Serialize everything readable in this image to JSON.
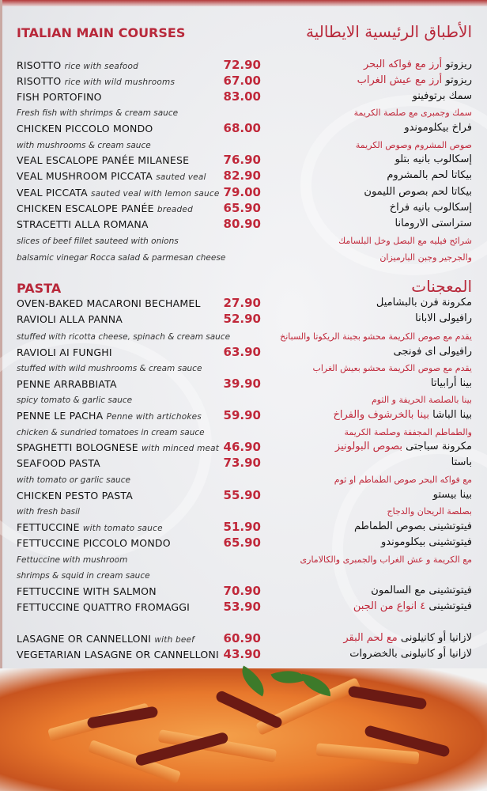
{
  "main_courses": {
    "title": "ITALIAN MAIN COURSES",
    "title_ar": "الأطباق الرئيسية الايطالية",
    "rows": [
      {
        "name": "RISOTTO",
        "note": "rice with seafood",
        "price": "72.90",
        "ar": "ريزوتو",
        "ar_note": "أرز مع فواكه البحر"
      },
      {
        "name": "RISOTTO",
        "note": "rice with wild mushrooms",
        "price": "67.00",
        "ar": "ريزوتو",
        "ar_note": "أرز مع عيش الغراب"
      },
      {
        "name": "FISH PORTOFINO",
        "price": "83.00",
        "ar": "سمك برتوفينو"
      },
      {
        "desc": "Fresh fish with shrimps & cream sauce",
        "ar_desc": "سمك وجمبرى مع صلصة الكريمة"
      },
      {
        "name": "CHICKEN PICCOLO MONDO",
        "price": "68.00",
        "ar": "فراخ بيكلوموندو"
      },
      {
        "desc": "with mushrooms & cream sauce",
        "ar_desc": "صوص المشروم وصوص الكريمة"
      },
      {
        "name": "VEAL ESCALOPE PANÉE MILANESE",
        "price": "76.90",
        "ar": "إسكالوب بانيه بتلو"
      },
      {
        "name": "VEAL MUSHROOM PICCATA",
        "note": "sauted veal",
        "price": "82.90",
        "ar": "بيكاتا لحم بالمشروم"
      },
      {
        "name": "VEAL PICCATA",
        "note": "sauted veal with lemon sauce",
        "price": "79.00",
        "ar": "بيكاتا لحم بصوص الليمون"
      },
      {
        "name": "CHICKEN ESCALOPE PANÉE",
        "note": "breaded",
        "price": "65.90",
        "ar": "إسكالوب بانيه فراخ"
      },
      {
        "name": "STRACETTI ALLA ROMANA",
        "price": "80.90",
        "ar": "ستراستى الارومانا"
      },
      {
        "desc": "slices of beef fillet sauteed with onions",
        "ar_desc": "شرائح فيليه مع البصل وخل البلسامك"
      },
      {
        "desc": "balsamic vinegar Rocca salad & parmesan cheese",
        "ar_desc": "والجرجير وجبن البارميزان"
      }
    ]
  },
  "pasta": {
    "title": "PASTA",
    "title_ar": "المعجنات",
    "rows": [
      {
        "name": "OVEN-BAKED MACARONI BECHAMEL",
        "price": "27.90",
        "ar": "مكرونة فرن بالبشاميل"
      },
      {
        "name": "RAVIOLI ALLA PANNA",
        "price": "52.90",
        "ar": "رافيولى الابانا"
      },
      {
        "desc": "stuffed with ricotta cheese, spinach & cream sauce",
        "ar_desc": "يقدم مع صوص الكريمة محشو بجبنة الريكوتا والسبانخ"
      },
      {
        "name": "RAVIOLI AI FUNGHI",
        "price": "63.90",
        "ar": "رافيولى اى فونجى"
      },
      {
        "desc": "stuffed with wild mushrooms & cream sauce",
        "ar_desc": "يقدم مع صوص الكريمة محشو بعيش الغراب"
      },
      {
        "name": "PENNE ARRABBIATA",
        "price": "39.90",
        "ar": "بينا أرابياتا"
      },
      {
        "desc": "spicy tomato & garlic sauce",
        "ar_desc": "بينا بالصلصة الحريفة و الثوم"
      },
      {
        "name": "PENNE LE PACHA",
        "note": "Penne with artichokes",
        "price": "59.90",
        "ar": "بينا الباشا",
        "ar_note": "بينا بالخرشوف والفراخ"
      },
      {
        "desc": "chicken & sundried tomatoes in cream sauce",
        "ar_desc": "والطماطم المجففة وصلصة الكريمة"
      },
      {
        "name": "SPAGHETTI BOLOGNESE",
        "note": "with minced meat",
        "price": "46.90",
        "ar": "مكرونة سباجتى",
        "ar_note": "بصوص البولونيز"
      },
      {
        "name": "SEAFOOD PASTA",
        "price": "73.90",
        "ar": "باستا"
      },
      {
        "desc": "with tomato or garlic sauce",
        "ar_desc": "مع فواكه البحر صوص الطماطم او ثوم"
      },
      {
        "name": "CHICKEN PESTO PASTA",
        "price": "55.90",
        "ar": "بينا بيستو"
      },
      {
        "desc": "with fresh basil",
        "ar_desc": "بصلصة الريحان والدجاج"
      },
      {
        "name": "FETTUCCINE",
        "note": "with tomato sauce",
        "price": "51.90",
        "ar": "فيتوتشينى بصوص الطماطم"
      },
      {
        "name": "FETTUCCINE PICCOLO MONDO",
        "price": "65.90",
        "ar": "فيتوتشينى بيكلوموندو"
      },
      {
        "desc": "Fettuccine with mushroom",
        "ar_desc": "مع الكريمة و عش الغراب والجمبرى والكالامارى"
      },
      {
        "desc": " shrimps & squid in cream sauce"
      },
      {
        "name": "FETTUCCINE WITH SALMON",
        "price": "70.90",
        "ar": "فيتوتشينى مع السالمون"
      },
      {
        "name": "FETTUCCINE QUATTRO FROMAGGI",
        "price": "53.90",
        "ar": "فيتوتشينى",
        "ar_note": "٤ انواع من الجبن"
      },
      {
        "name": "LASAGNE OR CANNELLONI",
        "note": "with beef",
        "price": "60.90",
        "ar": "لازانيا أو كانيلونى",
        "ar_note": "مع لحم البقر"
      },
      {
        "name": "VEGETARIAN LASAGNE OR CANNELLONI",
        "price": "43.90",
        "ar": "لازانيا أو كانيلونى بالخضروات"
      }
    ]
  },
  "colors": {
    "accent": "#c0283a",
    "background": "#ecedf0"
  },
  "photo": {
    "icon": "pasta-dish-photo"
  }
}
